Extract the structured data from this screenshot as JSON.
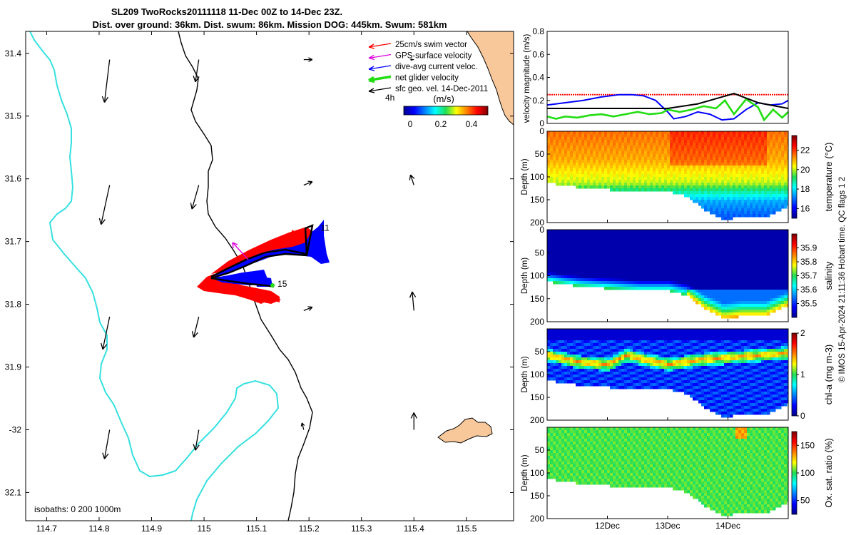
{
  "title": {
    "line1": "SL209 TwoRocks20111118 11-Dec 00Z to 14-Dec 23Z.",
    "line2": "Dist. over ground: 36km. Dist. swum: 86km. Mission DOG: 445km. Swum: 581km"
  },
  "credit": "© IMOS 15-Apr-2024 21:11:36 Hobart time. QC flags 1  2",
  "colors": {
    "coast": "#35e0e0",
    "land": "#f9c89a",
    "swim": "#ff0000",
    "gps": "#dd00dd",
    "current": "#0000ff",
    "net": "#22dd11",
    "geo": "#000000"
  },
  "chart_data": [
    {
      "type": "map",
      "xlim": [
        114.66,
        115.59
      ],
      "ylim": [
        -32.145,
        -31.365
      ],
      "x_ticks": [
        114.7,
        114.8,
        114.9,
        115,
        115.1,
        115.2,
        115.3,
        115.4,
        115.5
      ],
      "x_tick_labels": [
        "114.7",
        "114.8",
        "114.9",
        "115",
        "115.1",
        "115.2",
        "115.3",
        "115.4",
        "115.5"
      ],
      "y_ticks": [
        -31.4,
        -31.5,
        -31.6,
        -31.7,
        -31.8,
        -31.9,
        -32,
        -32.1
      ],
      "y_tick_labels": [
        "31.4",
        "31.5",
        "31.6",
        "31.7",
        "31.8",
        "31.9",
        "-32",
        "32.1"
      ],
      "isobaths_label": "isobaths: 0   200  1000m",
      "legend": [
        {
          "label": "25cm/s swim vector",
          "color": "#ff0000"
        },
        {
          "label": "GPS-surface velocity",
          "color": "#dd00dd"
        },
        {
          "label": "dive-avg current veloc.",
          "color": "#0000ff"
        },
        {
          "label": "net glider velocity",
          "color": "#22dd11"
        },
        {
          "label": "sfc geo. vel. 14-Dec-2011",
          "color": "#000000"
        }
      ],
      "colorbar": {
        "label": "(m/s)",
        "side_label": "4h",
        "ticks": [
          "0",
          "0.2",
          "0.4"
        ],
        "range": [
          0,
          0.5
        ]
      },
      "track_labels": [
        {
          "text": "11",
          "lon": 115.222,
          "lat": -31.683
        },
        {
          "text": "15",
          "lon": 115.14,
          "lat": -31.772
        }
      ],
      "geo_vectors": [
        {
          "lon": 114.82,
          "lat": -31.41,
          "u": -0.03,
          "v": -0.25
        },
        {
          "lon": 114.82,
          "lat": -31.61,
          "u": -0.05,
          "v": -0.23
        },
        {
          "lon": 114.82,
          "lat": -31.82,
          "u": -0.04,
          "v": -0.19
        },
        {
          "lon": 114.82,
          "lat": -32.0,
          "u": -0.03,
          "v": -0.17
        },
        {
          "lon": 114.99,
          "lat": -31.41,
          "u": -0.02,
          "v": -0.13
        },
        {
          "lon": 114.99,
          "lat": -31.61,
          "u": -0.04,
          "v": -0.14
        },
        {
          "lon": 114.99,
          "lat": -31.82,
          "u": -0.03,
          "v": -0.12
        },
        {
          "lon": 114.99,
          "lat": -32.0,
          "u": -0.02,
          "v": -0.12
        },
        {
          "lon": 115.19,
          "lat": -31.41,
          "u": 0.05,
          "v": 0.0
        },
        {
          "lon": 115.19,
          "lat": -31.61,
          "u": 0.05,
          "v": 0.02
        },
        {
          "lon": 115.19,
          "lat": -31.81,
          "u": 0.05,
          "v": 0.02
        },
        {
          "lon": 115.19,
          "lat": -32.0,
          "u": -0.01,
          "v": 0.04
        },
        {
          "lon": 115.4,
          "lat": -31.41,
          "u": -0.02,
          "v": 0.0
        },
        {
          "lon": 115.4,
          "lat": -31.61,
          "u": -0.02,
          "v": 0.06
        },
        {
          "lon": 115.4,
          "lat": -31.81,
          "u": -0.01,
          "v": 0.11
        },
        {
          "lon": 115.4,
          "lat": -32.0,
          "u": 0.0,
          "v": 0.1
        }
      ]
    },
    {
      "type": "line",
      "ylabel": "velocity magnitude (m/s)",
      "ylim": [
        0,
        0.8
      ],
      "y_ticks": [
        0,
        0.2,
        0.4,
        0.6,
        0.8
      ],
      "xlim": [
        11,
        15
      ],
      "series": [
        {
          "name": "swim",
          "color": "#ff0000",
          "x": [
            11,
            15
          ],
          "y": [
            0.25,
            0.25
          ]
        },
        {
          "name": "dive-avg current",
          "color": "#0000ff",
          "x": [
            11,
            11.3,
            11.6,
            11.9,
            12.2,
            12.4,
            12.6,
            12.8,
            13.0,
            13.1,
            13.3,
            13.5,
            13.7,
            13.9,
            14.1,
            14.3,
            14.5,
            14.7,
            14.9,
            15
          ],
          "y": [
            0.16,
            0.18,
            0.2,
            0.23,
            0.25,
            0.25,
            0.24,
            0.2,
            0.1,
            0.04,
            0.06,
            0.1,
            0.08,
            0.03,
            0.04,
            0.12,
            0.18,
            0.16,
            0.17,
            0.2
          ]
        },
        {
          "name": "net glider",
          "color": "#22dd11",
          "x": [
            11,
            11.15,
            11.3,
            11.5,
            11.7,
            11.9,
            12.1,
            12.3,
            12.5,
            12.7,
            12.9,
            13.0,
            13.2,
            13.4,
            13.6,
            13.8,
            13.95,
            14.1,
            14.3,
            14.5,
            14.6,
            14.75,
            14.9,
            15
          ],
          "y": [
            0.06,
            0.04,
            0.06,
            0.05,
            0.07,
            0.08,
            0.06,
            0.08,
            0.1,
            0.08,
            0.09,
            0.12,
            0.1,
            0.12,
            0.15,
            0.13,
            0.2,
            0.08,
            0.21,
            0.14,
            0.03,
            0.12,
            0.05,
            0.1
          ]
        },
        {
          "name": "sfc geo.",
          "color": "#000000",
          "x": [
            11,
            12,
            13,
            13.5,
            14.1,
            14.5,
            15
          ],
          "y": [
            0.13,
            0.13,
            0.13,
            0.17,
            0.26,
            0.18,
            0.13
          ]
        }
      ]
    },
    {
      "type": "heatmap",
      "variable": "temperature",
      "cbar_label": "temperature (°C)",
      "ylabel": "Depth (m)",
      "ylim": [
        200,
        0
      ],
      "y_ticks": [
        0,
        50,
        100,
        150,
        200
      ],
      "clim": [
        15,
        23.5
      ],
      "cbar_ticks": [
        16,
        18,
        20,
        22
      ],
      "bottom_depth": {
        "x": [
          11,
          11.5,
          12,
          12.5,
          13,
          13.3,
          13.6,
          13.9,
          14.2,
          14.6,
          15
        ],
        "y": [
          110,
          120,
          125,
          130,
          130,
          140,
          170,
          190,
          185,
          185,
          160
        ]
      },
      "layers": [
        {
          "depth": 0,
          "value": 21.5
        },
        {
          "depth": 60,
          "value": 21
        },
        {
          "depth": 110,
          "value": 20
        },
        {
          "depth": 150,
          "value": 17.5
        },
        {
          "depth": 200,
          "value": 16.5
        }
      ]
    },
    {
      "type": "heatmap",
      "variable": "salinity",
      "cbar_label": "salinity",
      "ylabel": "Depth (m)",
      "ylim": [
        200,
        0
      ],
      "y_ticks": [
        0,
        50,
        100,
        150,
        200
      ],
      "clim": [
        35.4,
        36.0
      ],
      "cbar_ticks": [
        35.5,
        35.6,
        35.7,
        35.8,
        35.9
      ],
      "bottom_depth": {
        "x": [
          11,
          11.5,
          12,
          12.5,
          13,
          13.3,
          13.6,
          13.9,
          14.2,
          14.6,
          15
        ],
        "y": [
          110,
          120,
          125,
          130,
          130,
          140,
          170,
          190,
          185,
          185,
          160
        ]
      },
      "layers": [
        {
          "depth": 0,
          "value": 35.42
        },
        {
          "depth": 110,
          "value": 35.45
        },
        {
          "depth": 140,
          "value": 35.58
        },
        {
          "depth": 200,
          "value": 35.7
        }
      ]
    },
    {
      "type": "heatmap",
      "variable": "chl-a",
      "cbar_label": "chl-a (mg m-3)",
      "ylabel": "Depth (m)",
      "ylim": [
        200,
        0
      ],
      "y_ticks": [
        50,
        100,
        150,
        200
      ],
      "y_tick_labels": [
        "50",
        "100",
        "150",
        "200"
      ],
      "clim": [
        0,
        2
      ],
      "cbar_ticks": [
        0,
        1,
        2
      ],
      "bottom_depth": {
        "x": [
          11,
          11.5,
          12,
          12.5,
          13,
          13.3,
          13.6,
          13.9,
          14.2,
          14.6,
          15
        ],
        "y": [
          110,
          120,
          125,
          130,
          130,
          140,
          170,
          190,
          185,
          185,
          160
        ]
      },
      "dcm_depth": {
        "x": [
          11,
          11.5,
          12,
          12.3,
          12.6,
          13,
          13.5,
          14,
          14.5,
          15
        ],
        "y": [
          55,
          70,
          75,
          55,
          65,
          75,
          65,
          60,
          55,
          50
        ]
      },
      "dcm_value": 1.1,
      "background_value": 0.35
    },
    {
      "type": "heatmap",
      "variable": "oxygen saturation",
      "cbar_label": "Ox. sat. ratio (%)",
      "ylabel": "Depth (m)",
      "ylim": [
        200,
        0
      ],
      "y_ticks": [
        50,
        100,
        150,
        200
      ],
      "clim": [
        25,
        175
      ],
      "cbar_ticks": [
        50,
        100,
        150
      ],
      "x_ticks": [
        12,
        13,
        14
      ],
      "x_tick_labels": [
        "12Dec",
        "13Dec",
        "14Dec"
      ],
      "bottom_depth": {
        "x": [
          11,
          11.5,
          12,
          12.5,
          13,
          13.3,
          13.6,
          13.9,
          14.2,
          14.6,
          15
        ],
        "y": [
          110,
          120,
          125,
          130,
          130,
          140,
          170,
          190,
          185,
          185,
          160
        ]
      },
      "value": 103
    }
  ]
}
